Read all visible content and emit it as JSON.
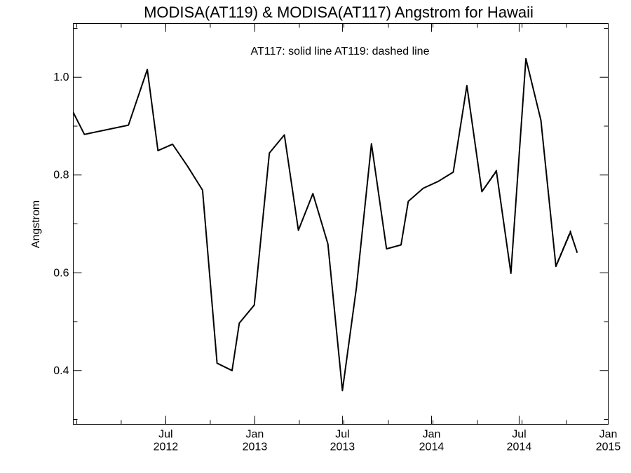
{
  "chart_data": {
    "type": "line",
    "title": "MODISA(AT119) & MODISA(AT117)  Angstrom for Hawaii",
    "ylabel": "Angstrom",
    "xlabel": "",
    "annotation": "AT117: solid line   AT119: dashed line",
    "x_range": [
      "2011-12-23",
      "2015-01-01"
    ],
    "ylim": [
      0.29,
      1.11
    ],
    "grid": false,
    "y_ticks": [
      {
        "value": 0.4,
        "label": "0.4"
      },
      {
        "value": 0.6,
        "label": "0.6"
      },
      {
        "value": 0.8,
        "label": "0.8"
      },
      {
        "value": 1.0,
        "label": "1.0"
      }
    ],
    "x_ticks": [
      {
        "date": "2012-07-01",
        "month": "Jul",
        "year": "2012"
      },
      {
        "date": "2013-01-01",
        "month": "Jan",
        "year": "2013"
      },
      {
        "date": "2013-07-01",
        "month": "Jul",
        "year": "2013"
      },
      {
        "date": "2014-01-01",
        "month": "Jan",
        "year": "2014"
      },
      {
        "date": "2014-07-01",
        "month": "Jul",
        "year": "2014"
      },
      {
        "date": "2015-01-01",
        "month": "Jan",
        "year": "2015"
      }
    ],
    "series": [
      {
        "name": "AT117",
        "style": "solid",
        "color": "#000000",
        "points": [
          {
            "x": "2011-12-23",
            "y": 0.928
          },
          {
            "x": "2012-01-15",
            "y": 0.883
          },
          {
            "x": "2012-04-15",
            "y": 0.902
          },
          {
            "x": "2012-05-24",
            "y": 1.016
          },
          {
            "x": "2012-06-15",
            "y": 0.85
          },
          {
            "x": "2012-07-15",
            "y": 0.863
          },
          {
            "x": "2012-08-15",
            "y": 0.818
          },
          {
            "x": "2012-09-15",
            "y": 0.769
          },
          {
            "x": "2012-10-15",
            "y": 0.415
          },
          {
            "x": "2012-11-15",
            "y": 0.4
          },
          {
            "x": "2012-11-30",
            "y": 0.497
          },
          {
            "x": "2012-12-31",
            "y": 0.534
          },
          {
            "x": "2013-01-31",
            "y": 0.845
          },
          {
            "x": "2013-03-03",
            "y": 0.882
          },
          {
            "x": "2013-04-01",
            "y": 0.687
          },
          {
            "x": "2013-05-01",
            "y": 0.762
          },
          {
            "x": "2013-06-01",
            "y": 0.659
          },
          {
            "x": "2013-07-01",
            "y": 0.359
          },
          {
            "x": "2013-07-30",
            "y": 0.57
          },
          {
            "x": "2013-08-30",
            "y": 0.864
          },
          {
            "x": "2013-09-30",
            "y": 0.649
          },
          {
            "x": "2013-10-30",
            "y": 0.657
          },
          {
            "x": "2013-11-14",
            "y": 0.746
          },
          {
            "x": "2013-12-15",
            "y": 0.773
          },
          {
            "x": "2014-01-15",
            "y": 0.787
          },
          {
            "x": "2014-02-15",
            "y": 0.806
          },
          {
            "x": "2014-03-15",
            "y": 0.983
          },
          {
            "x": "2014-04-15",
            "y": 0.766
          },
          {
            "x": "2014-05-15",
            "y": 0.808
          },
          {
            "x": "2014-06-14",
            "y": 0.599
          },
          {
            "x": "2014-07-15",
            "y": 1.038
          },
          {
            "x": "2014-08-15",
            "y": 0.912
          },
          {
            "x": "2014-09-15",
            "y": 0.613
          },
          {
            "x": "2014-10-15",
            "y": 0.683
          },
          {
            "x": "2014-10-29",
            "y": 0.641
          }
        ]
      },
      {
        "name": "AT119",
        "style": "dashed",
        "color": "#000000",
        "points": [
          {
            "x": "2011-12-23",
            "y": 0.928
          },
          {
            "x": "2012-01-15",
            "y": 0.883
          },
          {
            "x": "2012-04-15",
            "y": 0.902
          },
          {
            "x": "2012-05-24",
            "y": 1.016
          },
          {
            "x": "2012-06-15",
            "y": 0.85
          },
          {
            "x": "2012-07-15",
            "y": 0.863
          },
          {
            "x": "2012-08-15",
            "y": 0.818
          },
          {
            "x": "2012-09-15",
            "y": 0.769
          },
          {
            "x": "2012-10-15",
            "y": 0.415
          },
          {
            "x": "2012-11-15",
            "y": 0.4
          },
          {
            "x": "2012-11-30",
            "y": 0.497
          },
          {
            "x": "2012-12-31",
            "y": 0.534
          },
          {
            "x": "2013-01-31",
            "y": 0.845
          },
          {
            "x": "2013-03-03",
            "y": 0.882
          },
          {
            "x": "2013-04-01",
            "y": 0.687
          },
          {
            "x": "2013-05-01",
            "y": 0.762
          },
          {
            "x": "2013-06-01",
            "y": 0.659
          },
          {
            "x": "2013-07-01",
            "y": 0.359
          },
          {
            "x": "2013-07-30",
            "y": 0.57
          },
          {
            "x": "2013-08-30",
            "y": 0.864
          },
          {
            "x": "2013-09-30",
            "y": 0.649
          },
          {
            "x": "2013-10-30",
            "y": 0.657
          },
          {
            "x": "2013-11-14",
            "y": 0.746
          },
          {
            "x": "2013-12-15",
            "y": 0.773
          },
          {
            "x": "2014-01-15",
            "y": 0.787
          },
          {
            "x": "2014-02-15",
            "y": 0.806
          },
          {
            "x": "2014-03-15",
            "y": 0.983
          },
          {
            "x": "2014-04-15",
            "y": 0.766
          },
          {
            "x": "2014-05-15",
            "y": 0.81
          },
          {
            "x": "2014-06-14",
            "y": 0.599
          },
          {
            "x": "2014-07-15",
            "y": 1.038
          },
          {
            "x": "2014-08-15",
            "y": 0.912
          },
          {
            "x": "2014-09-15",
            "y": 0.615
          },
          {
            "x": "2014-10-15",
            "y": 0.686
          },
          {
            "x": "2014-10-29",
            "y": 0.641
          }
        ]
      }
    ]
  }
}
